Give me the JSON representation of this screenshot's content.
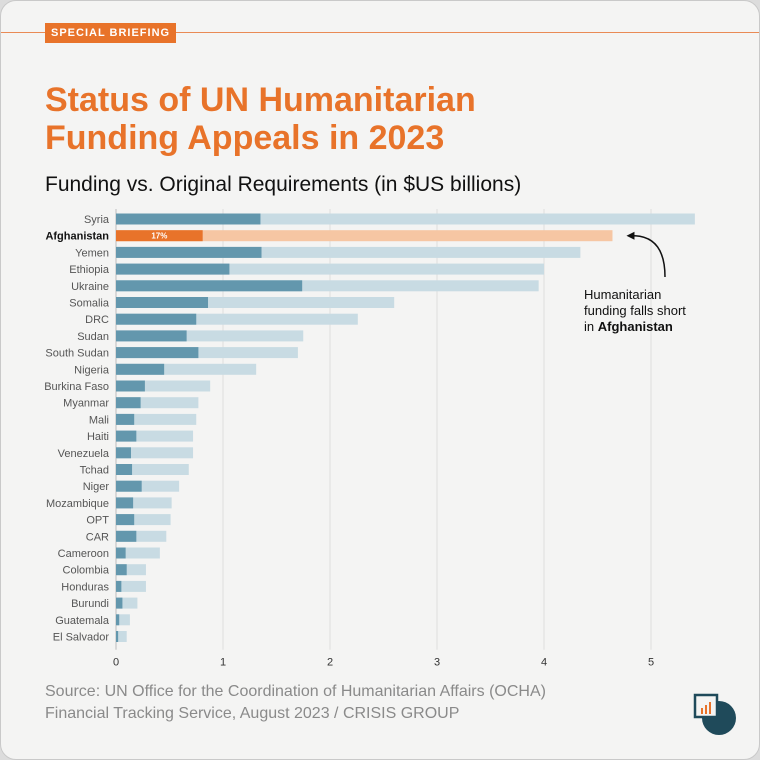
{
  "badge": "SPECIAL BRIEFING",
  "title_line1": "Status of UN Humanitarian",
  "title_line2": "Funding Appeals in 2023",
  "subtitle": "Funding vs. Original Requirements (in $US billions)",
  "source_line1": "Source: UN Office for the Coordination of Humanitarian Affairs (OCHA)",
  "source_line2": "Financial Tracking Service, August 2023 / CRISIS GROUP",
  "annotation": {
    "line1": "Humanitarian",
    "line2": "funding falls short",
    "line3_prefix": "in ",
    "line3_bold": "Afghanistan"
  },
  "colors": {
    "funded": "#6397ad",
    "required": "#c8dbe3",
    "highlight_funded": "#e8732a",
    "highlight_required": "#f6c6a3",
    "accent": "#e8732a"
  },
  "chart_data": {
    "type": "bar",
    "orientation": "horizontal",
    "categories": [
      "Syria",
      "Afghanistan",
      "Yemen",
      "Ethiopia",
      "Ukraine",
      "Somalia",
      "DRC",
      "Sudan",
      "South Sudan",
      "Nigeria",
      "Burkina Faso",
      "Myanmar",
      "Mali",
      "Haiti",
      "Venezuela",
      "Tchad",
      "Niger",
      "Mozambique",
      "OPT",
      "CAR",
      "Cameroon",
      "Colombia",
      "Honduras",
      "Burundi",
      "Guatemala",
      "El Salvador"
    ],
    "series": [
      {
        "values": [
          1.35,
          0.81,
          1.36,
          1.06,
          1.74,
          0.86,
          0.75,
          0.66,
          0.77,
          0.45,
          0.27,
          0.23,
          0.17,
          0.19,
          0.14,
          0.15,
          0.24,
          0.16,
          0.17,
          0.19,
          0.09,
          0.1,
          0.05,
          0.06,
          0.03,
          0.02
        ]
      },
      {
        "values": [
          5.41,
          4.64,
          4.34,
          4.0,
          3.95,
          2.6,
          2.26,
          1.75,
          1.7,
          1.31,
          0.88,
          0.77,
          0.75,
          0.72,
          0.72,
          0.68,
          0.59,
          0.52,
          0.51,
          0.47,
          0.41,
          0.28,
          0.28,
          0.2,
          0.13,
          0.1
        ]
      }
    ],
    "highlight_category": "Afghanistan",
    "highlight_label": "17%",
    "xlim": [
      0,
      5.5
    ],
    "xticks": [
      0,
      1,
      2,
      3,
      4,
      5
    ],
    "grid": true,
    "title": "Funding vs. Original Requirements (in $US billions)"
  }
}
